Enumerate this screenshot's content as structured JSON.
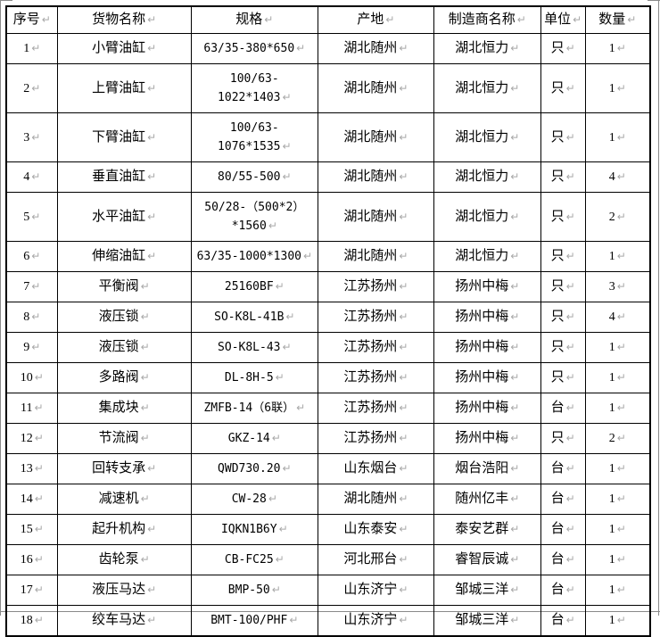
{
  "page": {
    "background_color": "#ffffff",
    "boundary_line_color": "#8a8a8a",
    "table_border_color": "#000000",
    "paragraph_mark": "↵",
    "paragraph_mark_color": "#a8a8a8"
  },
  "table": {
    "headers": [
      "序号",
      "货物名称",
      "规格",
      "产地",
      "制造商名称",
      "单位",
      "数量"
    ],
    "rows": [
      [
        "1",
        "小臂油缸",
        "63/35-380*650",
        "湖北随州",
        "湖北恒力",
        "只",
        "1"
      ],
      [
        "2",
        "上臂油缸",
        "100/63-1022*1403",
        "湖北随州",
        "湖北恒力",
        "只",
        "1"
      ],
      [
        "3",
        "下臂油缸",
        "100/63-1076*1535",
        "湖北随州",
        "湖北恒力",
        "只",
        "1"
      ],
      [
        "4",
        "垂直油缸",
        "80/55-500",
        "湖北随州",
        "湖北恒力",
        "只",
        "4"
      ],
      [
        "5",
        "水平油缸",
        "50/28-（500*2）\n*1560",
        "湖北随州",
        "湖北恒力",
        "只",
        "2"
      ],
      [
        "6",
        "伸缩油缸",
        "63/35-1000*1300",
        "湖北随州",
        "湖北恒力",
        "只",
        "1"
      ],
      [
        "7",
        "平衡阀",
        "25160BF",
        "江苏扬州",
        "扬州中梅",
        "只",
        "3"
      ],
      [
        "8",
        "液压锁",
        "SO-K8L-41B",
        "江苏扬州",
        "扬州中梅",
        "只",
        "4"
      ],
      [
        "9",
        "液压锁",
        "SO-K8L-43",
        "江苏扬州",
        "扬州中梅",
        "只",
        "1"
      ],
      [
        "10",
        "多路阀",
        "DL-8H-5",
        "江苏扬州",
        "扬州中梅",
        "只",
        "1"
      ],
      [
        "11",
        "集成块",
        "ZMFB-14（6联）",
        "江苏扬州",
        "扬州中梅",
        "台",
        "1"
      ],
      [
        "12",
        "节流阀",
        "GKZ-14",
        "江苏扬州",
        "扬州中梅",
        "只",
        "2"
      ],
      [
        "13",
        "回转支承",
        "QWD730.20",
        "山东烟台",
        "烟台浩阳",
        "台",
        "1"
      ],
      [
        "14",
        "减速机",
        "CW-28",
        "湖北随州",
        "随州亿丰",
        "台",
        "1"
      ],
      [
        "15",
        "起升机构",
        "IQKN1B6Y",
        "山东泰安",
        "泰安艺群",
        "台",
        "1"
      ],
      [
        "16",
        "齿轮泵",
        "CB-FC25",
        "河北邢台",
        "睿智辰诚",
        "台",
        "1"
      ],
      [
        "17",
        "液压马达",
        "BMP-50",
        "山东济宁",
        "邹城三洋",
        "台",
        "1"
      ],
      [
        "18",
        "绞车马达",
        "BMT-100/PHF",
        "山东济宁",
        "邹城三洋",
        "台",
        "1"
      ]
    ]
  }
}
